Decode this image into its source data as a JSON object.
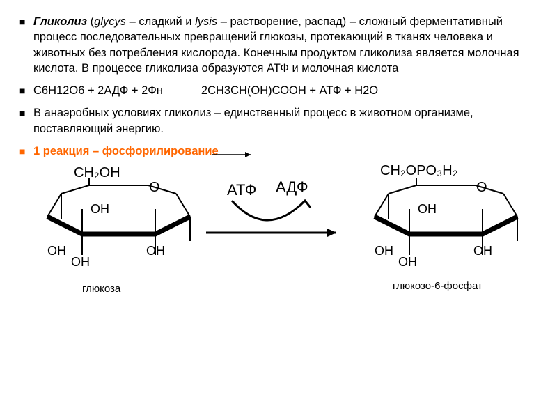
{
  "bullets": [
    {
      "color": "#000000",
      "html": "<b><em>Гликолиз</em></b> (<em>glycys</em> – сладкий и <em>lysis</em> – растворение, распад) – сложный ферментативный процесс последовательных превращений глюкозы, протекающий в тканях человека и животных без потребления кислорода. Конечным продуктом гликолиза является молочная кислота. В процессе гликолиза образуются АТФ и молочная кислота"
    },
    {
      "color": "#000000",
      "html": "С6Н12О6 + 2АДФ + 2Фн&nbsp;&nbsp;&nbsp;&nbsp;&nbsp;&nbsp;&nbsp;&nbsp;&nbsp;&nbsp;&nbsp;&nbsp;2СН3СН(ОН)СООН + АТФ + Н2О"
    },
    {
      "color": "#000000",
      "html": "В анаэробных условиях гликолиз – единственный процесс в животном организме, поставляющий энергию."
    },
    {
      "color": "#ff6600",
      "html": "<span class=\"orange-text\">1 реакция – фосфорилирование</span>"
    }
  ],
  "diagram": {
    "ring_stroke": "#000000",
    "thick_width": 6,
    "thin_width": 2,
    "left": {
      "top_label": "CH₂OH",
      "o_label": "O",
      "oh_labels": [
        "OH",
        "OH",
        "OH",
        "OH"
      ],
      "bottom": "глюкоза"
    },
    "atp": "АТФ",
    "adp": "АДФ",
    "right": {
      "top_label": "CH₂OPO₃H₂",
      "o_label": "O",
      "oh_labels": [
        "OH",
        "OH",
        "OH",
        "OH"
      ],
      "bottom": "глюкозо-6-фосфат"
    }
  }
}
